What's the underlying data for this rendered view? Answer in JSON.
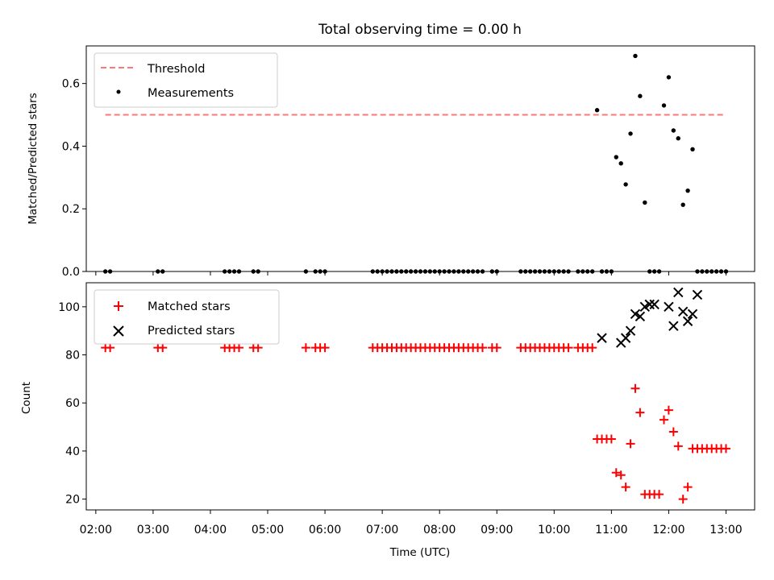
{
  "chart_data": [
    {
      "type": "scatter",
      "title": "Total observing time = 0.00 h",
      "xlabel": "",
      "ylabel": "Matched/Predicted stars",
      "x_unit": "time (UTC, HH:MM)",
      "xlim": [
        "01:50",
        "13:30"
      ],
      "ylim": [
        0,
        0.72
      ],
      "yticks": [
        0.0,
        0.2,
        0.4,
        0.6
      ],
      "ytick_labels": [
        "0.0",
        "0.2",
        "0.4",
        "0.6"
      ],
      "legend": {
        "placement": "upper-left"
      },
      "series": [
        {
          "name": "Threshold",
          "style": "dashed-line",
          "color": "#ff7777",
          "x": [
            "02:10",
            "13:00"
          ],
          "y": [
            0.5,
            0.5
          ]
        },
        {
          "name": "Measurements",
          "style": "dot",
          "color": "#000000",
          "x": [
            "02:10",
            "02:15",
            "03:05",
            "03:10",
            "04:15",
            "04:20",
            "04:25",
            "04:30",
            "04:45",
            "04:50",
            "05:40",
            "05:50",
            "05:55",
            "06:00",
            "06:50",
            "06:55",
            "07:00",
            "07:05",
            "07:10",
            "07:15",
            "07:20",
            "07:25",
            "07:30",
            "07:35",
            "07:40",
            "07:45",
            "07:50",
            "07:55",
            "08:00",
            "08:05",
            "08:10",
            "08:15",
            "08:20",
            "08:25",
            "08:30",
            "08:35",
            "08:40",
            "08:45",
            "08:55",
            "09:00",
            "09:25",
            "09:30",
            "09:35",
            "09:40",
            "09:45",
            "09:50",
            "09:55",
            "10:00",
            "10:05",
            "10:10",
            "10:15",
            "10:25",
            "10:30",
            "10:35",
            "10:40",
            "10:45",
            "10:50",
            "10:55",
            "11:00",
            "11:05",
            "11:10",
            "11:15",
            "11:20",
            "11:25",
            "11:30",
            "11:35",
            "11:40",
            "11:45",
            "11:50",
            "11:55",
            "12:00",
            "12:05",
            "12:10",
            "12:15",
            "12:20",
            "12:25",
            "12:30",
            "12:35",
            "12:40",
            "12:45",
            "12:50",
            "12:55",
            "13:00"
          ],
          "y": [
            0,
            0,
            0,
            0,
            0,
            0,
            0,
            0,
            0,
            0,
            0,
            0,
            0,
            0,
            0,
            0,
            0,
            0,
            0,
            0,
            0,
            0,
            0,
            0,
            0,
            0,
            0,
            0,
            0,
            0,
            0,
            0,
            0,
            0,
            0,
            0,
            0,
            0,
            0,
            0,
            0,
            0,
            0,
            0,
            0,
            0,
            0,
            0,
            0,
            0,
            0,
            0,
            0,
            0,
            0,
            0.515,
            0,
            0,
            0,
            0.365,
            0.345,
            0.278,
            0.44,
            0.688,
            0.56,
            0.22,
            0,
            0,
            0,
            0.53,
            0.62,
            0.45,
            0.425,
            0.213,
            0.258,
            0.39,
            0,
            0,
            0,
            0,
            0,
            0,
            0
          ]
        }
      ]
    },
    {
      "type": "scatter",
      "title": "",
      "xlabel": "Time (UTC)",
      "ylabel": "Count",
      "x_unit": "time (UTC, HH:MM)",
      "xlim": [
        "01:50",
        "13:30"
      ],
      "ylim": [
        15.5,
        110
      ],
      "yticks": [
        20,
        40,
        60,
        80,
        100
      ],
      "ytick_labels": [
        "20",
        "40",
        "60",
        "80",
        "100"
      ],
      "xticks": [
        "02:00",
        "03:00",
        "04:00",
        "05:00",
        "06:00",
        "07:00",
        "08:00",
        "09:00",
        "10:00",
        "11:00",
        "12:00",
        "13:00"
      ],
      "xtick_labels": [
        "02:00",
        "03:00",
        "04:00",
        "05:00",
        "06:00",
        "07:00",
        "08:00",
        "09:00",
        "10:00",
        "11:00",
        "12:00",
        "13:00"
      ],
      "legend": {
        "placement": "upper-left"
      },
      "series": [
        {
          "name": "Matched stars",
          "style": "plus",
          "color": "#ff0000",
          "x": [
            "02:10",
            "02:15",
            "03:05",
            "03:10",
            "04:15",
            "04:20",
            "04:25",
            "04:30",
            "04:45",
            "04:50",
            "05:40",
            "05:50",
            "05:55",
            "06:00",
            "06:50",
            "06:55",
            "07:00",
            "07:05",
            "07:10",
            "07:15",
            "07:20",
            "07:25",
            "07:30",
            "07:35",
            "07:40",
            "07:45",
            "07:50",
            "07:55",
            "08:00",
            "08:05",
            "08:10",
            "08:15",
            "08:20",
            "08:25",
            "08:30",
            "08:35",
            "08:40",
            "08:45",
            "08:55",
            "09:00",
            "09:25",
            "09:30",
            "09:35",
            "09:40",
            "09:45",
            "09:50",
            "09:55",
            "10:00",
            "10:05",
            "10:10",
            "10:15",
            "10:25",
            "10:30",
            "10:35",
            "10:40",
            "10:45",
            "10:50",
            "10:55",
            "11:00",
            "11:05",
            "11:10",
            "11:15",
            "11:20",
            "11:25",
            "11:30",
            "11:35",
            "11:40",
            "11:45",
            "11:50",
            "11:55",
            "12:00",
            "12:05",
            "12:10",
            "12:15",
            "12:20",
            "12:25",
            "12:30",
            "12:35",
            "12:40",
            "12:45",
            "12:50",
            "12:55",
            "13:00"
          ],
          "y": [
            83,
            83,
            83,
            83,
            83,
            83,
            83,
            83,
            83,
            83,
            83,
            83,
            83,
            83,
            83,
            83,
            83,
            83,
            83,
            83,
            83,
            83,
            83,
            83,
            83,
            83,
            83,
            83,
            83,
            83,
            83,
            83,
            83,
            83,
            83,
            83,
            83,
            83,
            83,
            83,
            83,
            83,
            83,
            83,
            83,
            83,
            83,
            83,
            83,
            83,
            83,
            83,
            83,
            83,
            83,
            45,
            45,
            45,
            45,
            31,
            30,
            25,
            43,
            66,
            56,
            22,
            22,
            22,
            22,
            53,
            57,
            48,
            42,
            20,
            25,
            41,
            41,
            41,
            41,
            41,
            41,
            41,
            41
          ]
        },
        {
          "name": "Predicted stars",
          "style": "x",
          "color": "#000000",
          "x": [
            "10:50",
            "11:10",
            "11:15",
            "11:20",
            "11:25",
            "11:30",
            "11:35",
            "11:40",
            "11:45",
            "12:00",
            "12:05",
            "12:10",
            "12:15",
            "12:20",
            "12:25",
            "12:30"
          ],
          "y": [
            87,
            85,
            87,
            90,
            97,
            96,
            100,
            101,
            101,
            100,
            92,
            106,
            98,
            94,
            97,
            105
          ]
        }
      ]
    }
  ]
}
